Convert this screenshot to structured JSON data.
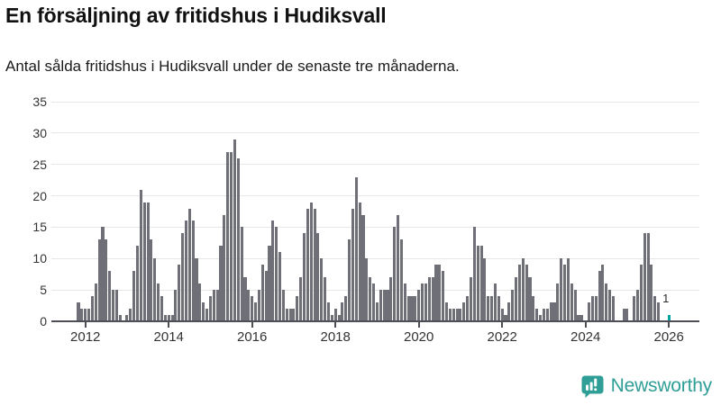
{
  "header": {
    "title": "En försäljning av fritidshus i Hudiksvall",
    "subtitle": "Antal sålda fritidshus i Hudiksvall under de senaste tre månaderna."
  },
  "chart_data": {
    "type": "bar",
    "title": "En försäljning av fritidshus i Hudiksvall",
    "subtitle": "Antal sålda fritidshus i Hudiksvall under de senaste tre månaderna.",
    "frequency": "monthly",
    "start_month": "2011-11",
    "end_month": "2026-01",
    "values": [
      3,
      2,
      2,
      2,
      4,
      6,
      13,
      15,
      13,
      8,
      5,
      5,
      1,
      0,
      1,
      2,
      8,
      12,
      21,
      19,
      19,
      13,
      10,
      6,
      4,
      1,
      1,
      1,
      5,
      9,
      14,
      16,
      18,
      16,
      10,
      6,
      3,
      2,
      4,
      5,
      5,
      12,
      17,
      27,
      27,
      29,
      26,
      15,
      7,
      5,
      4,
      3,
      5,
      9,
      8,
      12,
      16,
      15,
      11,
      5,
      2,
      2,
      2,
      4,
      7,
      14,
      18,
      19,
      18,
      14,
      10,
      7,
      3,
      1,
      2,
      1,
      3,
      4,
      13,
      18,
      23,
      19,
      17,
      10,
      7,
      6,
      3,
      5,
      5,
      5,
      7,
      15,
      17,
      13,
      6,
      4,
      4,
      4,
      5,
      6,
      6,
      7,
      7,
      9,
      9,
      8,
      3,
      2,
      2,
      2,
      2,
      3,
      4,
      7,
      15,
      12,
      12,
      10,
      4,
      4,
      6,
      4,
      2,
      1,
      3,
      5,
      7,
      9,
      10,
      9,
      7,
      4,
      2,
      1,
      2,
      2,
      3,
      3,
      6,
      10,
      9,
      10,
      6,
      5,
      1,
      1,
      0,
      3,
      4,
      4,
      8,
      9,
      6,
      5,
      4,
      0,
      0,
      2,
      2,
      0,
      4,
      5,
      9,
      14,
      14,
      9,
      4,
      3,
      0,
      0,
      1
    ],
    "y_ticks": [
      0,
      5,
      10,
      15,
      20,
      25,
      30,
      35
    ],
    "ylim": [
      0,
      35
    ],
    "x_tick_labels": [
      "2012",
      "2014",
      "2016",
      "2018",
      "2020",
      "2022",
      "2024",
      "2026"
    ],
    "grid": "horizontal",
    "legend": "none",
    "bar_color": "#6F6F78",
    "highlight": {
      "index": 170,
      "value": 1,
      "label": "1",
      "color": "#00A3A3"
    }
  },
  "footer": {
    "brand": "Newsworthy",
    "brand_color": "#2F9E96",
    "icon": "bar-chart-speech-bubble-icon"
  }
}
